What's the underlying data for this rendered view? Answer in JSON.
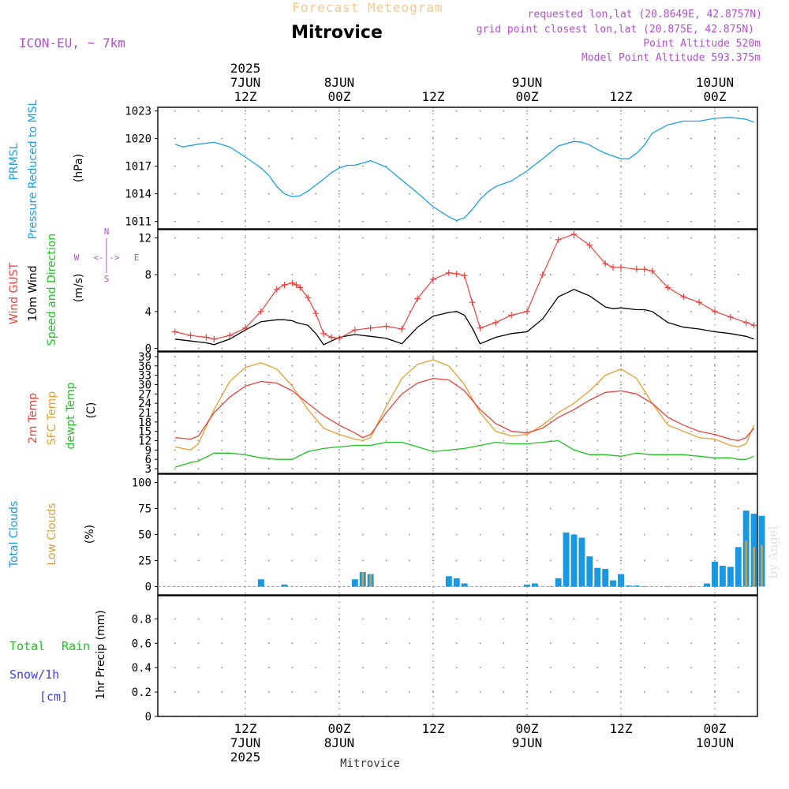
{
  "header": {
    "title_top": "Forecast Meteogram",
    "location": "Mitrovice",
    "model": "ICON-EU, ~ 7km",
    "requested": "requested lon,lat (20.8649E, 42.8757N)",
    "grid_point": "grid point closest lon,lat (20.875E, 42.875N)",
    "point_altitude": "Point Altitude 520m",
    "model_altitude": "Model Point Altitude 593.375m",
    "footer_location": "Mitrovice",
    "watermark": "by Angel"
  },
  "time_axis": {
    "top_labels": [
      {
        "t": 12,
        "lines": [
          "2025",
          "7JUN",
          "12Z"
        ]
      },
      {
        "t": 24,
        "lines": [
          "8JUN",
          "00Z"
        ]
      },
      {
        "t": 36,
        "lines": [
          "12Z"
        ]
      },
      {
        "t": 48,
        "lines": [
          "9JUN",
          "00Z"
        ]
      },
      {
        "t": 60,
        "lines": [
          "12Z"
        ]
      },
      {
        "t": 72,
        "lines": [
          "10JUN",
          "00Z"
        ]
      }
    ],
    "bottom_labels": [
      {
        "t": 12,
        "lines": [
          "12Z",
          "7JUN",
          "2025"
        ]
      },
      {
        "t": 24,
        "lines": [
          "00Z",
          "8JUN"
        ]
      },
      {
        "t": 36,
        "lines": [
          "12Z"
        ]
      },
      {
        "t": 48,
        "lines": [
          "00Z",
          "9JUN"
        ]
      },
      {
        "t": 60,
        "lines": [
          "12Z"
        ]
      },
      {
        "t": 72,
        "lines": [
          "00Z",
          "10JUN"
        ]
      }
    ]
  },
  "colors": {
    "pressure": "#1aa0e6",
    "gust": "#e8413c",
    "wind": "#000000",
    "temp": "#e8413c",
    "sfc_temp": "#e0a030",
    "dewpt": "#20c020",
    "total_clouds": "#1a98e0",
    "low_clouds": "#d4a040",
    "rain": "#20c020",
    "snow": "#4040e0",
    "purple": "#b050d0",
    "grid": "#888888"
  },
  "panel_labels": {
    "pressure": [
      "PRMSL",
      "Pressure Reduced to MSL"
    ],
    "pressure_unit": "(hPa)",
    "wind": [
      "Wind GUST",
      "10m Wind",
      "Speed and Direction"
    ],
    "wind_unit": "(m/s)",
    "compass": {
      "w": "W",
      "e": "E",
      "n": "N",
      "s": "S",
      "arrow": "<-|->"
    },
    "temp": [
      "2m Temp",
      "SFC Temp",
      "dewpt Temp"
    ],
    "temp_unit": "(C)",
    "clouds": [
      "Total Clouds",
      "Low Clouds"
    ],
    "clouds_unit": "(%)",
    "precip": [
      "Total",
      "Rain",
      "Snow/1h",
      "[cm]"
    ],
    "precip_unit": "1hr Precip (mm)"
  },
  "chart_data": [
    {
      "type": "line",
      "name": "pressure",
      "ylim": [
        1010.2,
        1023.4
      ],
      "yticks": [
        1011,
        1014,
        1017,
        1020,
        1023
      ],
      "x": [
        3,
        4,
        6,
        8,
        10,
        12,
        14,
        15,
        16,
        17,
        18,
        19,
        20,
        22,
        23,
        24,
        25,
        26,
        28,
        30,
        32,
        34,
        36,
        38,
        39,
        40,
        41,
        42,
        43,
        44,
        46,
        48,
        50,
        52,
        54,
        55,
        56,
        57,
        58,
        60,
        61,
        62,
        63,
        64,
        66,
        68,
        70,
        72,
        74,
        76,
        77
      ],
      "values": [
        1019.4,
        1019.1,
        1019.4,
        1019.6,
        1019.1,
        1018.0,
        1016.8,
        1016.0,
        1014.8,
        1014.0,
        1013.7,
        1013.8,
        1014.3,
        1015.6,
        1016.3,
        1016.8,
        1017.1,
        1017.1,
        1017.6,
        1016.9,
        1015.5,
        1014.1,
        1012.6,
        1011.5,
        1011.1,
        1011.4,
        1012.3,
        1013.4,
        1014.2,
        1014.8,
        1015.4,
        1016.5,
        1017.8,
        1019.2,
        1019.7,
        1019.6,
        1019.3,
        1018.8,
        1018.4,
        1017.8,
        1017.8,
        1018.4,
        1019.3,
        1020.6,
        1021.5,
        1021.9,
        1021.9,
        1022.2,
        1022.3,
        1022.1,
        1021.8
      ]
    },
    {
      "type": "line",
      "name": "wind",
      "ylim": [
        -0.3,
        12.9
      ],
      "yticks": [
        0,
        4,
        8,
        12
      ],
      "x": [
        3,
        5,
        7,
        8,
        10,
        12,
        14,
        16,
        17,
        18,
        18.5,
        19,
        20,
        21,
        22,
        23,
        24,
        26,
        28,
        30,
        32,
        34,
        36,
        38,
        39,
        40,
        41,
        42,
        44,
        46,
        48,
        50,
        52,
        54,
        56,
        58,
        59,
        60,
        62,
        63,
        64,
        66,
        68,
        70,
        72,
        74,
        76,
        77
      ],
      "gust": [
        1.8,
        1.4,
        1.2,
        1.0,
        1.4,
        2.2,
        4.0,
        6.4,
        6.9,
        7.1,
        6.9,
        6.6,
        5.5,
        3.8,
        1.6,
        1.2,
        1.1,
        2.0,
        2.2,
        2.4,
        2.1,
        5.4,
        7.5,
        8.2,
        8.1,
        7.9,
        5.0,
        2.2,
        2.8,
        3.6,
        4.0,
        8.0,
        11.8,
        12.4,
        11.2,
        9.2,
        8.8,
        8.8,
        8.6,
        8.6,
        8.4,
        6.6,
        5.6,
        5.0,
        4.0,
        3.4,
        2.8,
        2.5
      ],
      "speed": [
        1.0,
        0.8,
        0.6,
        0.4,
        1.0,
        2.0,
        2.9,
        3.1,
        3.1,
        3.0,
        2.8,
        2.7,
        2.5,
        1.6,
        0.4,
        0.8,
        1.2,
        1.5,
        1.3,
        1.1,
        0.5,
        2.3,
        3.5,
        3.9,
        4.0,
        3.6,
        2.2,
        0.5,
        1.2,
        1.6,
        1.8,
        3.2,
        5.6,
        6.4,
        5.7,
        4.5,
        4.3,
        4.4,
        4.2,
        4.2,
        4.0,
        2.8,
        2.3,
        2.1,
        1.8,
        1.6,
        1.3,
        1.0
      ]
    },
    {
      "type": "line",
      "name": "temperature",
      "ylim": [
        1.5,
        40.5
      ],
      "yticks": [
        3,
        6,
        9,
        12,
        15,
        18,
        21,
        24,
        27,
        30,
        33,
        36,
        39
      ],
      "x": [
        3,
        5,
        6,
        8,
        10,
        12,
        14,
        16,
        18,
        20,
        22,
        24,
        26,
        27,
        28,
        30,
        32,
        34,
        36,
        38,
        40,
        42,
        44,
        46,
        48,
        50,
        52,
        54,
        56,
        58,
        60,
        62,
        64,
        66,
        68,
        70,
        72,
        74,
        75,
        76,
        77
      ],
      "temp_2m": [
        13.0,
        12.5,
        13.5,
        21.0,
        26.0,
        29.5,
        31.0,
        30.5,
        28.0,
        24.0,
        20.0,
        17.0,
        14.5,
        13.0,
        14.0,
        21.0,
        27.0,
        30.5,
        32.0,
        31.5,
        28.0,
        22.0,
        17.5,
        15.0,
        14.5,
        16.0,
        19.5,
        22.0,
        25.0,
        27.5,
        28.0,
        27.0,
        24.0,
        19.5,
        17.0,
        15.0,
        14.0,
        12.5,
        12.0,
        13.0,
        16.0
      ],
      "sfc_temp": [
        10.0,
        9.0,
        11.0,
        22.0,
        31.0,
        35.5,
        37.0,
        35.0,
        29.5,
        22.0,
        16.0,
        14.0,
        12.5,
        12.0,
        13.0,
        23.0,
        32.0,
        36.5,
        38.0,
        36.0,
        30.0,
        21.0,
        15.0,
        13.5,
        14.0,
        17.0,
        21.0,
        24.0,
        28.0,
        33.0,
        35.0,
        32.0,
        24.0,
        17.0,
        15.0,
        13.0,
        12.5,
        10.5,
        10.0,
        11.0,
        17.0
      ],
      "dewpt": [
        3.5,
        5.0,
        5.5,
        8.0,
        8.0,
        7.5,
        6.5,
        6.0,
        6.0,
        8.5,
        9.5,
        10.0,
        10.5,
        10.5,
        10.5,
        11.5,
        11.5,
        10.0,
        8.5,
        9.0,
        9.5,
        10.5,
        11.5,
        11.0,
        11.0,
        11.5,
        12.0,
        9.0,
        7.5,
        7.5,
        7.0,
        8.0,
        7.5,
        7.5,
        7.5,
        7.0,
        6.5,
        6.5,
        6.0,
        6.0,
        7.0
      ]
    },
    {
      "type": "bar",
      "name": "clouds",
      "ylim": [
        -8,
        108
      ],
      "yticks": [
        0,
        25,
        50,
        75,
        100
      ],
      "total": [
        [
          14,
          7
        ],
        [
          17,
          2
        ],
        [
          26,
          7
        ],
        [
          27,
          14
        ],
        [
          28,
          12
        ],
        [
          38,
          10
        ],
        [
          39,
          8
        ],
        [
          40,
          3
        ],
        [
          48,
          2
        ],
        [
          49,
          3
        ],
        [
          52,
          8
        ],
        [
          53,
          52
        ],
        [
          54,
          50
        ],
        [
          55,
          47
        ],
        [
          56,
          29
        ],
        [
          57,
          18
        ],
        [
          58,
          17
        ],
        [
          59,
          6
        ],
        [
          60,
          12
        ],
        [
          61,
          1
        ],
        [
          62,
          1
        ],
        [
          71,
          3
        ],
        [
          72,
          24
        ],
        [
          73,
          20
        ],
        [
          74,
          19
        ],
        [
          75,
          38
        ],
        [
          76,
          73
        ],
        [
          77,
          70
        ],
        [
          78,
          68
        ]
      ],
      "low": [
        [
          27,
          14
        ],
        [
          28,
          12
        ],
        [
          76,
          44
        ],
        [
          77,
          38
        ],
        [
          78,
          40
        ]
      ]
    },
    {
      "type": "bar",
      "name": "precip",
      "ylim": [
        0,
        0.99
      ],
      "yticks": [
        0,
        0.2,
        0.4,
        0.6,
        0.8
      ],
      "rain": [],
      "snow": []
    }
  ]
}
